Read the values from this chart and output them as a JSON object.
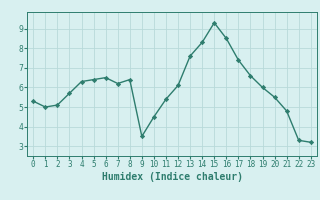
{
  "x": [
    0,
    1,
    2,
    3,
    4,
    5,
    6,
    7,
    8,
    9,
    10,
    11,
    12,
    13,
    14,
    15,
    16,
    17,
    18,
    19,
    20,
    21,
    22,
    23
  ],
  "y": [
    5.3,
    5.0,
    5.1,
    5.7,
    6.3,
    6.4,
    6.5,
    6.2,
    6.4,
    3.5,
    4.5,
    5.4,
    6.1,
    7.6,
    8.3,
    9.3,
    8.5,
    7.4,
    6.6,
    6.0,
    5.5,
    4.8,
    3.3,
    3.2
  ],
  "xlabel": "Humidex (Indice chaleur)",
  "ylabel": "",
  "xlim": [
    -0.5,
    23.5
  ],
  "ylim": [
    2.5,
    9.85
  ],
  "yticks": [
    3,
    4,
    5,
    6,
    7,
    8,
    9
  ],
  "xticks": [
    0,
    1,
    2,
    3,
    4,
    5,
    6,
    7,
    8,
    9,
    10,
    11,
    12,
    13,
    14,
    15,
    16,
    17,
    18,
    19,
    20,
    21,
    22,
    23
  ],
  "line_color": "#2e7d6e",
  "marker": "D",
  "marker_size": 2.2,
  "line_width": 1.0,
  "bg_color": "#d8f0f0",
  "grid_color": "#b8dada",
  "tick_label_fontsize": 5.5,
  "xlabel_fontsize": 7.0,
  "title_fontsize": 7
}
